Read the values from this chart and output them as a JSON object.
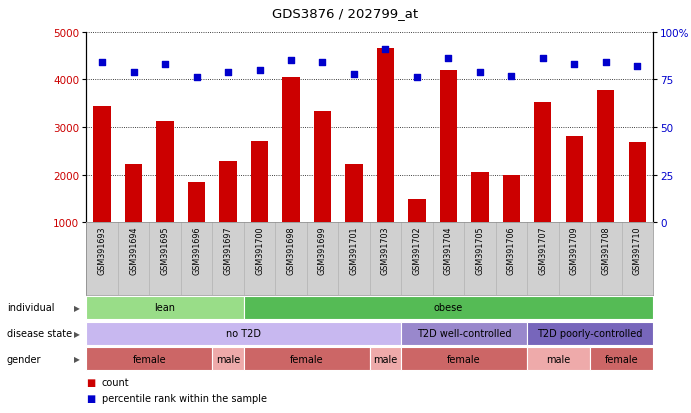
{
  "title": "GDS3876 / 202799_at",
  "samples": [
    "GSM391693",
    "GSM391694",
    "GSM391695",
    "GSM391696",
    "GSM391697",
    "GSM391700",
    "GSM391698",
    "GSM391699",
    "GSM391701",
    "GSM391703",
    "GSM391702",
    "GSM391704",
    "GSM391705",
    "GSM391706",
    "GSM391707",
    "GSM391709",
    "GSM391708",
    "GSM391710"
  ],
  "counts": [
    3430,
    2220,
    3130,
    1840,
    2280,
    2700,
    4050,
    3340,
    2220,
    4660,
    1490,
    4200,
    2050,
    2000,
    3520,
    2800,
    3780,
    2680
  ],
  "percentiles": [
    84,
    79,
    83,
    76,
    79,
    80,
    85,
    84,
    78,
    91,
    76,
    86,
    79,
    77,
    86,
    83,
    84,
    82
  ],
  "ylim_left": [
    1000,
    5000
  ],
  "ylim_right": [
    0,
    100
  ],
  "yticks_left": [
    1000,
    2000,
    3000,
    4000,
    5000
  ],
  "yticks_right": [
    0,
    25,
    50,
    75,
    100
  ],
  "bar_color": "#cc0000",
  "dot_color": "#0000cc",
  "tick_bg_color": "#d0d0d0",
  "annotation_rows": [
    {
      "label": "individual",
      "groups": [
        {
          "text": "lean",
          "start": 0,
          "end": 5,
          "color": "#99dd88"
        },
        {
          "text": "obese",
          "start": 5,
          "end": 18,
          "color": "#55bb55"
        }
      ]
    },
    {
      "label": "disease state",
      "groups": [
        {
          "text": "no T2D",
          "start": 0,
          "end": 10,
          "color": "#c8b8f0"
        },
        {
          "text": "T2D well-controlled",
          "start": 10,
          "end": 14,
          "color": "#9988cc"
        },
        {
          "text": "T2D poorly-controlled",
          "start": 14,
          "end": 18,
          "color": "#7766bb"
        }
      ]
    },
    {
      "label": "gender",
      "groups": [
        {
          "text": "female",
          "start": 0,
          "end": 4,
          "color": "#cc6666"
        },
        {
          "text": "male",
          "start": 4,
          "end": 5,
          "color": "#eeaaaa"
        },
        {
          "text": "female",
          "start": 5,
          "end": 9,
          "color": "#cc6666"
        },
        {
          "text": "male",
          "start": 9,
          "end": 10,
          "color": "#eeaaaa"
        },
        {
          "text": "female",
          "start": 10,
          "end": 14,
          "color": "#cc6666"
        },
        {
          "text": "male",
          "start": 14,
          "end": 16,
          "color": "#eeaaaa"
        },
        {
          "text": "female",
          "start": 16,
          "end": 18,
          "color": "#cc6666"
        }
      ]
    }
  ],
  "legend_items": [
    {
      "color": "#cc0000",
      "label": "count"
    },
    {
      "color": "#0000cc",
      "label": "percentile rank within the sample"
    }
  ]
}
